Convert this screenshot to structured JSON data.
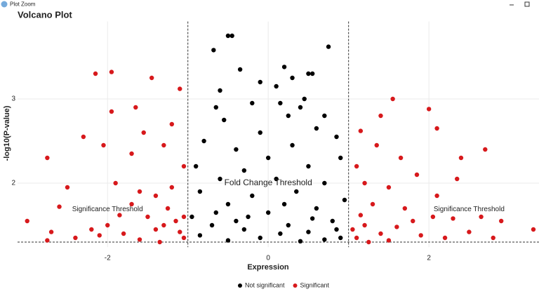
{
  "window": {
    "title": "Plot Zoom"
  },
  "chart_data": {
    "type": "scatter",
    "title": "Volcano Plot",
    "x_label": "Expression",
    "y_label": "-log10(P-value)",
    "xlim": [
      -3.12,
      3.37
    ],
    "ylim": [
      1.24,
      3.92
    ],
    "xticks": [
      -2,
      0,
      2
    ],
    "yticks": [
      2,
      3
    ],
    "grid": true,
    "hlines": [
      1.3
    ],
    "vlines": [
      -1,
      1
    ],
    "annotations": [
      {
        "text": "Significance Threshold",
        "x": -2.0,
        "y": 1.69,
        "color": "#222222"
      },
      {
        "text": "Significance Threshold",
        "x": 2.5,
        "y": 1.69,
        "color": "#222222"
      },
      {
        "text": "Fold Change Threshold",
        "x": 0.0,
        "y": 2.0,
        "color": "#d62728"
      }
    ],
    "legend": "bottom",
    "series": [
      {
        "name": "Not significant",
        "color": "#000000",
        "x": [
          -0.5,
          -0.45,
          -0.68,
          0.75,
          -0.35,
          0.2,
          0.5,
          0.55,
          -0.1,
          0.3,
          -0.6,
          0.1,
          0.45,
          -0.65,
          0.15,
          0.7,
          -0.2,
          0.4,
          -0.55,
          0.25,
          -0.1,
          0.6,
          -0.8,
          0.85,
          -0.4,
          0.3,
          -0.9,
          0.9,
          0.0,
          -0.3,
          0.5,
          -0.6,
          0.7,
          0.1,
          -0.85,
          -0.2,
          0.35,
          0.95,
          -0.5,
          0.6,
          -0.95,
          0.0,
          0.8,
          -0.7,
          0.25,
          -0.3,
          0.5,
          -0.85,
          0.9,
          -0.1,
          0.15,
          -0.5,
          0.4,
          0.7,
          -0.25,
          0.55,
          -0.65,
          0.2,
          -0.4,
          0.85
        ],
        "values": [
          3.75,
          3.75,
          3.58,
          3.62,
          3.35,
          3.38,
          3.3,
          3.3,
          3.2,
          3.25,
          3.1,
          3.15,
          3.0,
          2.9,
          2.95,
          2.8,
          2.95,
          2.9,
          2.75,
          2.8,
          2.6,
          2.65,
          2.5,
          2.55,
          2.4,
          2.45,
          2.2,
          2.3,
          2.3,
          2.15,
          2.2,
          2.05,
          2.0,
          2.05,
          1.9,
          1.85,
          1.9,
          1.8,
          1.75,
          1.7,
          1.6,
          1.65,
          1.55,
          1.5,
          1.5,
          1.45,
          1.42,
          1.38,
          1.35,
          1.35,
          1.4,
          1.32,
          1.31,
          1.33,
          1.6,
          1.58,
          1.65,
          1.75,
          1.55,
          1.45
        ]
      },
      {
        "name": "Significant",
        "color": "#d7191c",
        "x": [
          -2.15,
          -1.95,
          -1.45,
          -1.1,
          -1.95,
          -1.65,
          -2.3,
          -2.75,
          -2.5,
          -2.05,
          -1.7,
          -1.55,
          -1.3,
          -1.2,
          -1.05,
          -1.9,
          -1.6,
          -1.4,
          -1.2,
          -2.6,
          -3.0,
          -2.7,
          -2.4,
          -2.2,
          -2.0,
          -1.8,
          -1.5,
          -1.3,
          -1.1,
          -1.05,
          -1.25,
          -1.85,
          -2.1,
          -1.6,
          -1.4,
          -1.15,
          -2.75,
          -1.7,
          -1.35,
          -1.05,
          1.55,
          1.4,
          2.0,
          2.1,
          1.15,
          2.7,
          1.35,
          1.65,
          2.4,
          2.35,
          1.85,
          1.2,
          1.5,
          1.1,
          2.1,
          1.7,
          1.3,
          1.2,
          1.05,
          1.1,
          1.4,
          1.6,
          1.9,
          2.2,
          2.5,
          2.8,
          3.3,
          1.8,
          2.05,
          2.3,
          1.15,
          1.5,
          2.65,
          1.25,
          2.9
        ],
        "values": [
          3.3,
          3.32,
          3.25,
          3.12,
          2.85,
          2.9,
          2.55,
          2.3,
          1.95,
          2.45,
          2.35,
          2.6,
          2.45,
          2.7,
          2.2,
          2.0,
          1.9,
          1.85,
          1.95,
          1.72,
          1.55,
          1.42,
          1.35,
          1.45,
          1.5,
          1.4,
          1.6,
          1.5,
          1.42,
          1.35,
          1.7,
          1.62,
          1.38,
          1.33,
          1.45,
          1.55,
          1.32,
          1.75,
          1.3,
          1.6,
          3.0,
          2.8,
          2.88,
          2.65,
          2.62,
          2.4,
          2.45,
          2.3,
          2.3,
          2.05,
          2.1,
          2.0,
          1.95,
          2.2,
          1.85,
          1.7,
          1.75,
          1.5,
          1.45,
          1.35,
          1.4,
          1.48,
          1.38,
          1.35,
          1.42,
          1.35,
          1.45,
          1.55,
          1.6,
          1.58,
          1.62,
          1.32,
          1.6,
          1.3,
          1.55
        ]
      }
    ]
  }
}
